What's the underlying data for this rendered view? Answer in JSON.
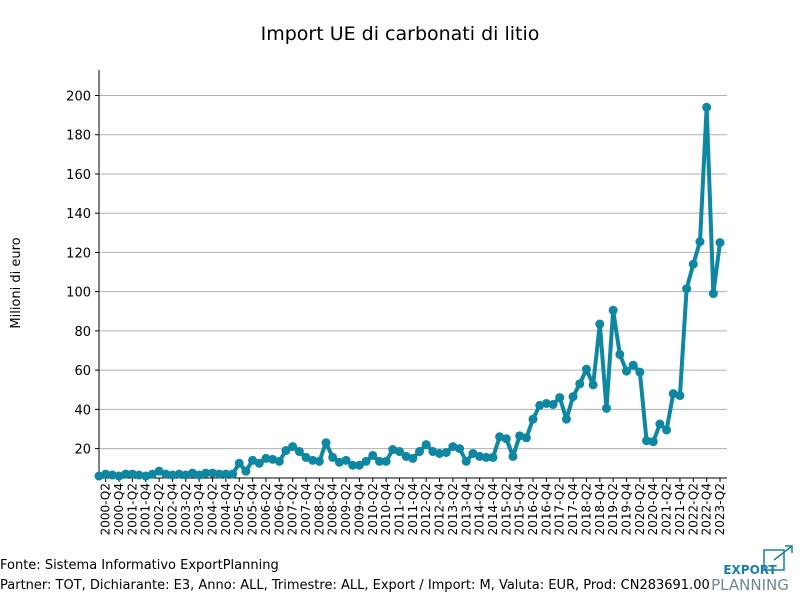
{
  "chart_data": {
    "type": "line",
    "title": "Import UE di carbonati di litio",
    "xlabel": "",
    "ylabel": "Milioni di euro",
    "ylim": [
      5,
      213
    ],
    "yticks": [
      20,
      40,
      60,
      80,
      100,
      120,
      140,
      160,
      180,
      200
    ],
    "grid": "horizontal",
    "legend": "none",
    "line_color": "#0e87a3",
    "x": [
      "2000-Q1",
      "2000-Q2",
      "2000-Q3",
      "2000-Q4",
      "2001-Q1",
      "2001-Q2",
      "2001-Q3",
      "2001-Q4",
      "2002-Q1",
      "2002-Q2",
      "2002-Q3",
      "2002-Q4",
      "2003-Q1",
      "2003-Q2",
      "2003-Q3",
      "2003-Q4",
      "2004-Q1",
      "2004-Q2",
      "2004-Q3",
      "2004-Q4",
      "2005-Q1",
      "2005-Q2",
      "2005-Q3",
      "2005-Q4",
      "2006-Q1",
      "2006-Q2",
      "2006-Q3",
      "2006-Q4",
      "2007-Q1",
      "2007-Q2",
      "2007-Q3",
      "2007-Q4",
      "2008-Q1",
      "2008-Q2",
      "2008-Q3",
      "2008-Q4",
      "2009-Q1",
      "2009-Q2",
      "2009-Q3",
      "2009-Q4",
      "2010-Q1",
      "2010-Q2",
      "2010-Q3",
      "2010-Q4",
      "2011-Q1",
      "2011-Q2",
      "2011-Q3",
      "2011-Q4",
      "2012-Q1",
      "2012-Q2",
      "2012-Q3",
      "2012-Q4",
      "2013-Q1",
      "2013-Q2",
      "2013-Q3",
      "2013-Q4",
      "2014-Q1",
      "2014-Q2",
      "2014-Q3",
      "2014-Q4",
      "2015-Q1",
      "2015-Q2",
      "2015-Q3",
      "2015-Q4",
      "2016-Q1",
      "2016-Q2",
      "2016-Q3",
      "2016-Q4",
      "2017-Q1",
      "2017-Q2",
      "2017-Q3",
      "2017-Q4",
      "2018-Q1",
      "2018-Q2",
      "2018-Q3",
      "2018-Q4",
      "2019-Q1",
      "2019-Q2",
      "2019-Q3",
      "2019-Q4",
      "2020-Q1",
      "2020-Q2",
      "2020-Q3",
      "2020-Q4",
      "2021-Q1",
      "2021-Q2",
      "2021-Q3",
      "2021-Q4",
      "2022-Q1",
      "2022-Q2",
      "2022-Q3",
      "2022-Q4",
      "2023-Q1",
      "2023-Q2"
    ],
    "xtick_labels": [
      "2000-Q2",
      "2000-Q4",
      "2001-Q2",
      "2001-Q4",
      "2002-Q2",
      "2002-Q4",
      "2003-Q2",
      "2003-Q4",
      "2004-Q2",
      "2004-Q4",
      "2005-Q2",
      "2005-Q4",
      "2006-Q2",
      "2006-Q4",
      "2007-Q2",
      "2007-Q4",
      "2008-Q2",
      "2008-Q4",
      "2009-Q2",
      "2009-Q4",
      "2010-Q2",
      "2010-Q4",
      "2011-Q2",
      "2011-Q4",
      "2012-Q2",
      "2012-Q4",
      "2013-Q2",
      "2013-Q4",
      "2014-Q2",
      "2014-Q4",
      "2015-Q2",
      "2015-Q4",
      "2016-Q2",
      "2016-Q4",
      "2017-Q2",
      "2017-Q4",
      "2018-Q2",
      "2018-Q4",
      "2019-Q2",
      "2019-Q4",
      "2020-Q2",
      "2020-Q4",
      "2021-Q2",
      "2021-Q4",
      "2022-Q2",
      "2022-Q4",
      "2023-Q2"
    ],
    "values": [
      6,
      7,
      6.5,
      6,
      7,
      7,
      6.5,
      6,
      7,
      8.5,
      7,
      6.5,
      7,
      6.5,
      7.5,
      6.5,
      7.5,
      7.5,
      7,
      7,
      7,
      12.5,
      8.5,
      14,
      12.5,
      15,
      14.5,
      13.5,
      19,
      21,
      18.5,
      15.5,
      14,
      13.5,
      23,
      15.5,
      13,
      14,
      11.5,
      11.5,
      13.5,
      16.5,
      13.5,
      13.5,
      19.5,
      18.5,
      16,
      15,
      18.5,
      22,
      18.5,
      17.5,
      18,
      21,
      20,
      13.5,
      17.5,
      16,
      15.5,
      15.5,
      26,
      25,
      16,
      26.5,
      25.5,
      35,
      42,
      43,
      42.5,
      46,
      35,
      46.5,
      53,
      60.5,
      52.5,
      83.5,
      40.5,
      90.5,
      68,
      59.5,
      62.5,
      59,
      24,
      23.5,
      32.5,
      29.5,
      48,
      47,
      101.5,
      114,
      125.5,
      194,
      99,
      125
    ]
  },
  "footer": {
    "source": "Fonte: Sistema Informativo ExportPlanning",
    "details": "Partner: TOT, Dichiarante: E3, Anno: ALL, Trimestre: ALL, Export / Import: M, Valuta: EUR, Prod: CN283691.00"
  },
  "logo": {
    "line1": "EXPORT",
    "line2": "PLANNING",
    "color": "#1a7fa8"
  }
}
